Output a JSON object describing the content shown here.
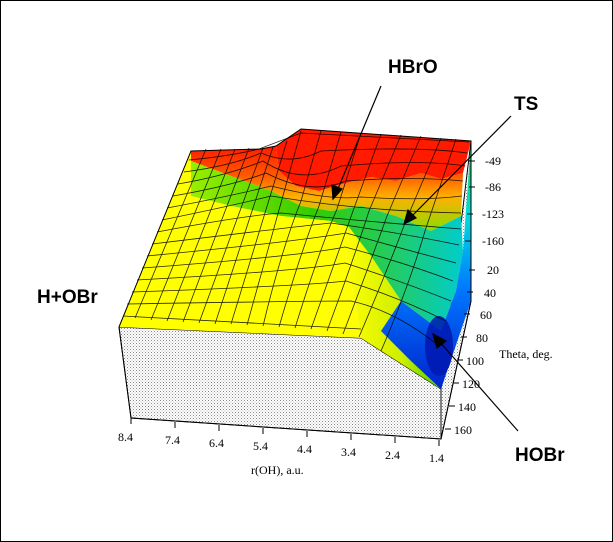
{
  "annotations": {
    "hbro": "HBrO",
    "ts": "TS",
    "h_obr": "H+OBr",
    "hobr": "HOBr"
  },
  "axes": {
    "x_label": "r(OH), a.u.",
    "x_ticks": [
      "8.4",
      "7.4",
      "6.4",
      "5.4",
      "4.4",
      "3.4",
      "2.4",
      "1.4"
    ],
    "theta_label": "Theta, deg.",
    "theta_ticks": [
      "20",
      "40",
      "60",
      "80",
      "100",
      "120",
      "140",
      "160"
    ],
    "z_ticks": [
      "-49",
      "-86",
      "-123",
      "-160"
    ]
  },
  "colors": {
    "top_red": "#ff1a00",
    "orange": "#ff9900",
    "yellow": "#ffff00",
    "green": "#33cc00",
    "cyan": "#00e0e0",
    "blue": "#0033ff",
    "wall": "#e8e8e8"
  }
}
